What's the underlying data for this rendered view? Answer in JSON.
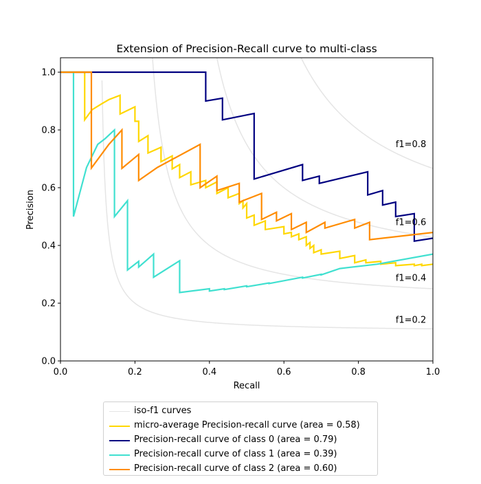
{
  "chart_data": {
    "type": "line",
    "title": "Extension of Precision-Recall curve to multi-class",
    "xlabel": "Recall",
    "ylabel": "Precision",
    "xlim": [
      0.0,
      1.0
    ],
    "ylim": [
      0.0,
      1.05
    ],
    "xticks": [
      "0.0",
      "0.2",
      "0.4",
      "0.6",
      "0.8",
      "1.0"
    ],
    "yticks": [
      "0.0",
      "0.2",
      "0.4",
      "0.6",
      "0.8",
      "1.0"
    ],
    "grid": false,
    "legend_position": "below",
    "iso_f1": {
      "legend": "iso-f1 curves",
      "color": "#e5e5e5",
      "values": [
        0.2,
        0.4,
        0.6,
        0.8
      ],
      "labels": [
        "f1=0.2",
        "f1=0.4",
        "f1=0.6",
        "f1=0.8"
      ]
    },
    "series": [
      {
        "name": "micro-average Precision-recall curve (area = 0.58)",
        "color": "#ffd700",
        "x": [
          0.0,
          0.065,
          0.065,
          0.085,
          0.11,
          0.13,
          0.16,
          0.16,
          0.2,
          0.2,
          0.21,
          0.21,
          0.235,
          0.235,
          0.27,
          0.27,
          0.3,
          0.3,
          0.32,
          0.32,
          0.35,
          0.35,
          0.39,
          0.39,
          0.42,
          0.42,
          0.45,
          0.45,
          0.48,
          0.48,
          0.49,
          0.49,
          0.5,
          0.5,
          0.52,
          0.52,
          0.55,
          0.55,
          0.6,
          0.6,
          0.62,
          0.62,
          0.64,
          0.64,
          0.66,
          0.66,
          0.67,
          0.67,
          0.68,
          0.68,
          0.7,
          0.7,
          0.75,
          0.75,
          0.79,
          0.79,
          0.82,
          0.82,
          0.86,
          0.86,
          0.9,
          0.9,
          0.95,
          0.95,
          0.97,
          0.97,
          1.0
        ],
        "y": [
          1.0,
          1.0,
          0.835,
          0.87,
          0.89,
          0.905,
          0.92,
          0.855,
          0.88,
          0.83,
          0.83,
          0.76,
          0.78,
          0.72,
          0.74,
          0.69,
          0.71,
          0.665,
          0.68,
          0.635,
          0.655,
          0.61,
          0.625,
          0.6,
          0.62,
          0.58,
          0.6,
          0.565,
          0.58,
          0.545,
          0.555,
          0.53,
          0.545,
          0.495,
          0.505,
          0.47,
          0.485,
          0.455,
          0.465,
          0.44,
          0.445,
          0.43,
          0.44,
          0.42,
          0.43,
          0.4,
          0.41,
          0.39,
          0.4,
          0.375,
          0.385,
          0.37,
          0.38,
          0.355,
          0.365,
          0.34,
          0.35,
          0.34,
          0.345,
          0.335,
          0.34,
          0.33,
          0.335,
          0.33,
          0.335,
          0.33,
          0.335
        ]
      },
      {
        "name": "Precision-recall curve of class 0 (area = 0.79)",
        "color": "#000080",
        "x": [
          0.0,
          0.39,
          0.39,
          0.435,
          0.435,
          0.52,
          0.52,
          0.65,
          0.65,
          0.695,
          0.695,
          0.825,
          0.825,
          0.865,
          0.865,
          0.9,
          0.9,
          0.95,
          0.95,
          1.0
        ],
        "y": [
          1.0,
          1.0,
          0.9,
          0.91,
          0.835,
          0.857,
          0.63,
          0.68,
          0.625,
          0.64,
          0.615,
          0.655,
          0.575,
          0.59,
          0.54,
          0.55,
          0.5,
          0.51,
          0.415,
          0.425
        ]
      },
      {
        "name": "Precision-recall curve of class 1 (area = 0.39)",
        "color": "#40e0d0",
        "x": [
          0.0,
          0.035,
          0.035,
          0.07,
          0.1,
          0.12,
          0.145,
          0.145,
          0.18,
          0.18,
          0.21,
          0.21,
          0.25,
          0.25,
          0.32,
          0.32,
          0.4,
          0.4,
          0.44,
          0.44,
          0.5,
          0.5,
          0.56,
          0.56,
          0.65,
          0.65,
          0.7,
          0.7,
          0.75,
          0.75,
          0.85,
          0.85,
          1.0
        ],
        "y": [
          1.0,
          1.0,
          0.5,
          0.67,
          0.75,
          0.77,
          0.8,
          0.5,
          0.555,
          0.315,
          0.345,
          0.325,
          0.37,
          0.29,
          0.347,
          0.237,
          0.25,
          0.242,
          0.25,
          0.247,
          0.26,
          0.257,
          0.27,
          0.268,
          0.29,
          0.287,
          0.3,
          0.298,
          0.32,
          0.32,
          0.335,
          0.335,
          0.37
        ]
      },
      {
        "name": "Precision-recall curve of class 2 (area = 0.60)",
        "color": "#ff8c00",
        "x": [
          0.0,
          0.083,
          0.083,
          0.13,
          0.165,
          0.165,
          0.21,
          0.21,
          0.26,
          0.375,
          0.375,
          0.42,
          0.42,
          0.48,
          0.48,
          0.54,
          0.54,
          0.58,
          0.58,
          0.62,
          0.62,
          0.66,
          0.66,
          0.71,
          0.71,
          0.79,
          0.79,
          0.83,
          0.83,
          1.0
        ],
        "y": [
          1.0,
          1.0,
          0.668,
          0.75,
          0.8,
          0.667,
          0.715,
          0.625,
          0.67,
          0.75,
          0.6,
          0.64,
          0.59,
          0.615,
          0.55,
          0.58,
          0.49,
          0.515,
          0.485,
          0.51,
          0.455,
          0.48,
          0.445,
          0.48,
          0.46,
          0.49,
          0.46,
          0.48,
          0.42,
          0.445
        ]
      }
    ]
  }
}
